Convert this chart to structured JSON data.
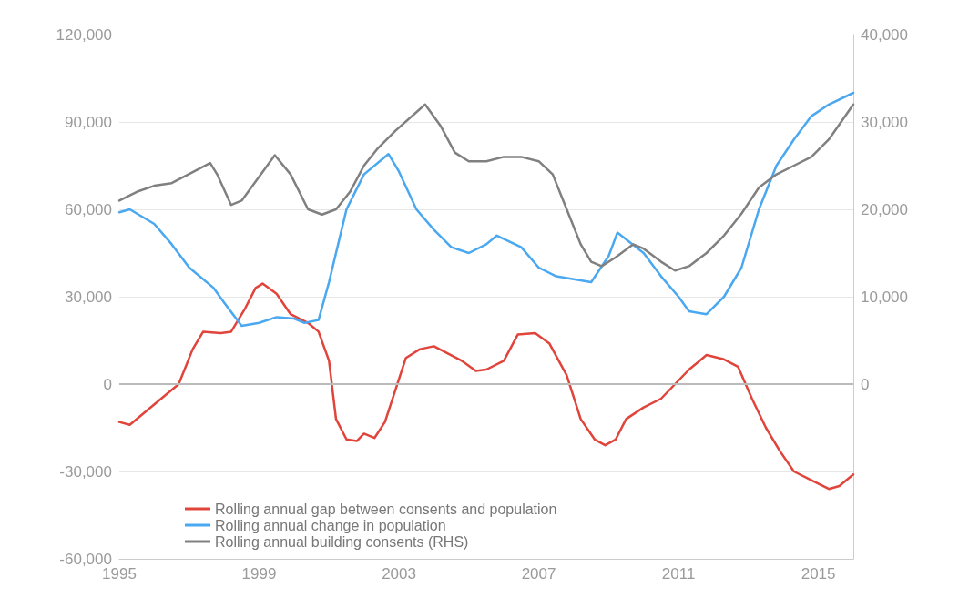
{
  "chart_data": {
    "type": "line",
    "xlim": [
      1995,
      2016
    ],
    "xticks": [
      1995,
      1999,
      2003,
      2007,
      2011,
      2015
    ],
    "ylim": [
      -60000,
      120000
    ],
    "yticks": [
      {
        "value": -60000,
        "label": "-60,000"
      },
      {
        "value": -30000,
        "label": "-30,000"
      },
      0,
      {
        "value": 30000,
        "label": "30,000"
      },
      {
        "value": 60000,
        "label": "60,000"
      },
      {
        "value": 90000,
        "label": "90,000"
      },
      {
        "value": 120000,
        "label": "120,000"
      }
    ],
    "y2lim": [
      -20000,
      40000
    ],
    "y2ticks": [
      0,
      {
        "value": 10000,
        "label": "10,000"
      },
      {
        "value": 20000,
        "label": "20,000"
      },
      {
        "value": 30000,
        "label": "30,000"
      },
      {
        "value": 40000,
        "label": "40,000"
      }
    ],
    "grid": "y",
    "legend": "bottom",
    "marker": "none",
    "line_style": "solid",
    "ref_lines": [
      {
        "axis": "y",
        "value": 0,
        "color": "#bbbbbb"
      }
    ],
    "series": [
      {
        "name": "Rolling annual gap between consents and population",
        "color": "#e0443a",
        "x": [
          1995,
          1995.3,
          1995.8,
          1996.3,
          1996.7,
          1997.1,
          1997.4,
          1997.9,
          1998.2,
          1998.6,
          1998.9,
          1999.1,
          1999.5,
          1999.9,
          2000.4,
          2000.7,
          2001.0,
          2001.2,
          2001.5,
          2001.8,
          2002,
          2002.3,
          2002.6,
          2002.9,
          2003.2,
          2003.6,
          2004,
          2004.4,
          2004.8,
          2005.2,
          2005.5,
          2006,
          2006.4,
          2006.9,
          2007.3,
          2007.8,
          2008.2,
          2008.6,
          2008.9,
          2009.2,
          2009.5,
          2010,
          2010.5,
          2010.9,
          2011.3,
          2011.8,
          2012.3,
          2012.7,
          2013.1,
          2013.5,
          2013.9,
          2014.3,
          2014.8,
          2015.3,
          2015.6,
          2016
        ],
        "values": [
          -13000,
          -14000,
          -9000,
          -4000,
          0,
          12000,
          18000,
          17500,
          18000,
          26000,
          33000,
          34500,
          31000,
          24000,
          21000,
          18000,
          8000,
          -12000,
          -19000,
          -19500,
          -17000,
          -18500,
          -13000,
          -2000,
          9000,
          12000,
          13000,
          10500,
          8000,
          4500,
          5000,
          8000,
          17000,
          17500,
          14000,
          3000,
          -12000,
          -19000,
          -21000,
          -19000,
          -12000,
          -8000,
          -5000,
          0,
          5000,
          10000,
          8500,
          6000,
          -5000,
          -15000,
          -23000,
          -30000,
          -33000,
          -36000,
          -35000,
          -31000
        ]
      },
      {
        "name": "Rolling annual change in population",
        "color": "#4aa8f0",
        "x": [
          1995,
          1995.3,
          1996,
          1996.5,
          1997,
          1997.7,
          1998,
          1998.5,
          1999,
          1999.5,
          2000,
          2000.3,
          2000.7,
          2001,
          2001.5,
          2002,
          2002.7,
          2003,
          2003.5,
          2004,
          2004.5,
          2005,
          2005.5,
          2005.8,
          2006.5,
          2007,
          2007.5,
          2008,
          2008.5,
          2009,
          2009.25,
          2010,
          2010.5,
          2011,
          2011.3,
          2011.8,
          2012.3,
          2012.8,
          2013.3,
          2013.8,
          2014.3,
          2014.8,
          2015.3,
          2016
        ],
        "values": [
          59000,
          60000,
          55000,
          48000,
          40000,
          33000,
          28000,
          20000,
          21000,
          23000,
          22500,
          21000,
          22000,
          35000,
          60000,
          72000,
          79000,
          73000,
          60000,
          53000,
          47000,
          45000,
          48000,
          51000,
          47000,
          40000,
          37000,
          36000,
          35000,
          44000,
          52000,
          45000,
          37000,
          30000,
          25000,
          24000,
          30000,
          40000,
          60000,
          75000,
          84000,
          92000,
          96000,
          100000
        ]
      },
      {
        "name": "Rolling annual building consents (RHS)",
        "color": "#808080",
        "axis": "y2",
        "x": [
          1995,
          1995.5,
          1996,
          1996.5,
          1997.6,
          1997.8,
          1998.2,
          1998.5,
          1999.45,
          1999.9,
          2000.4,
          2000.8,
          2001.2,
          2001.6,
          2002,
          2002.4,
          2002.9,
          2003.75,
          2004.2,
          2004.6,
          2005,
          2005.5,
          2006,
          2006.5,
          2007,
          2007.4,
          2007.8,
          2008.2,
          2008.5,
          2008.8,
          2009.2,
          2009.7,
          2010,
          2010.5,
          2010.9,
          2011.3,
          2011.8,
          2012.3,
          2012.8,
          2013.3,
          2013.8,
          2014.3,
          2014.8,
          2015.3,
          2016
        ],
        "values": [
          21000,
          22000,
          22700,
          23000,
          25300,
          24000,
          20500,
          21000,
          26200,
          24000,
          20000,
          19400,
          20000,
          22000,
          25000,
          27000,
          29000,
          32000,
          29500,
          26500,
          25500,
          25500,
          26000,
          26000,
          25500,
          24000,
          20000,
          16000,
          14000,
          13500,
          14500,
          16000,
          15500,
          14000,
          13000,
          13500,
          15000,
          17000,
          19500,
          22500,
          24000,
          25000,
          26000,
          28000,
          32000
        ]
      }
    ]
  }
}
